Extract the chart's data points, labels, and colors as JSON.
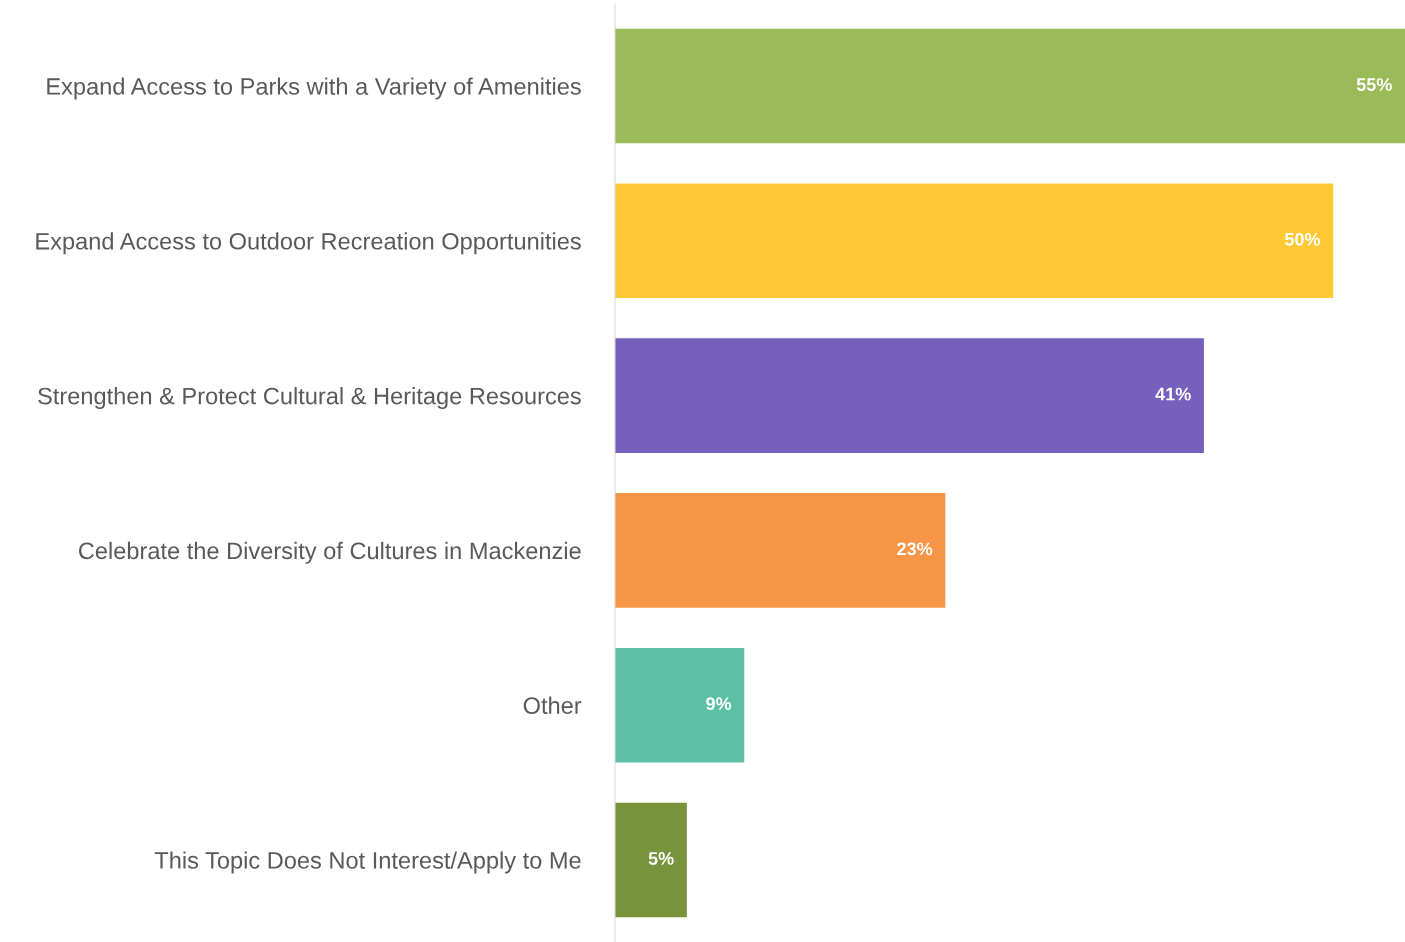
{
  "chart_data": {
    "type": "bar",
    "orientation": "horizontal",
    "categories": [
      "Expand Access to Parks with a Variety of Amenities",
      "Expand Access to Outdoor Recreation Opportunities",
      "Strengthen & Protect Cultural & Heritage Resources",
      "Celebrate the Diversity of Cultures in Mackenzie",
      "Other",
      "This Topic Does Not Interest/Apply to Me"
    ],
    "values": [
      55,
      50,
      41,
      23,
      9,
      5
    ],
    "value_labels": [
      "55%",
      "50%",
      "41%",
      "23%",
      "9%",
      "5%"
    ],
    "colors": [
      "#9bbb59",
      "#ffc936",
      "#7560be",
      "#f79646",
      "#5dc0a5",
      "#77933c"
    ],
    "grid": false,
    "legend": false
  }
}
